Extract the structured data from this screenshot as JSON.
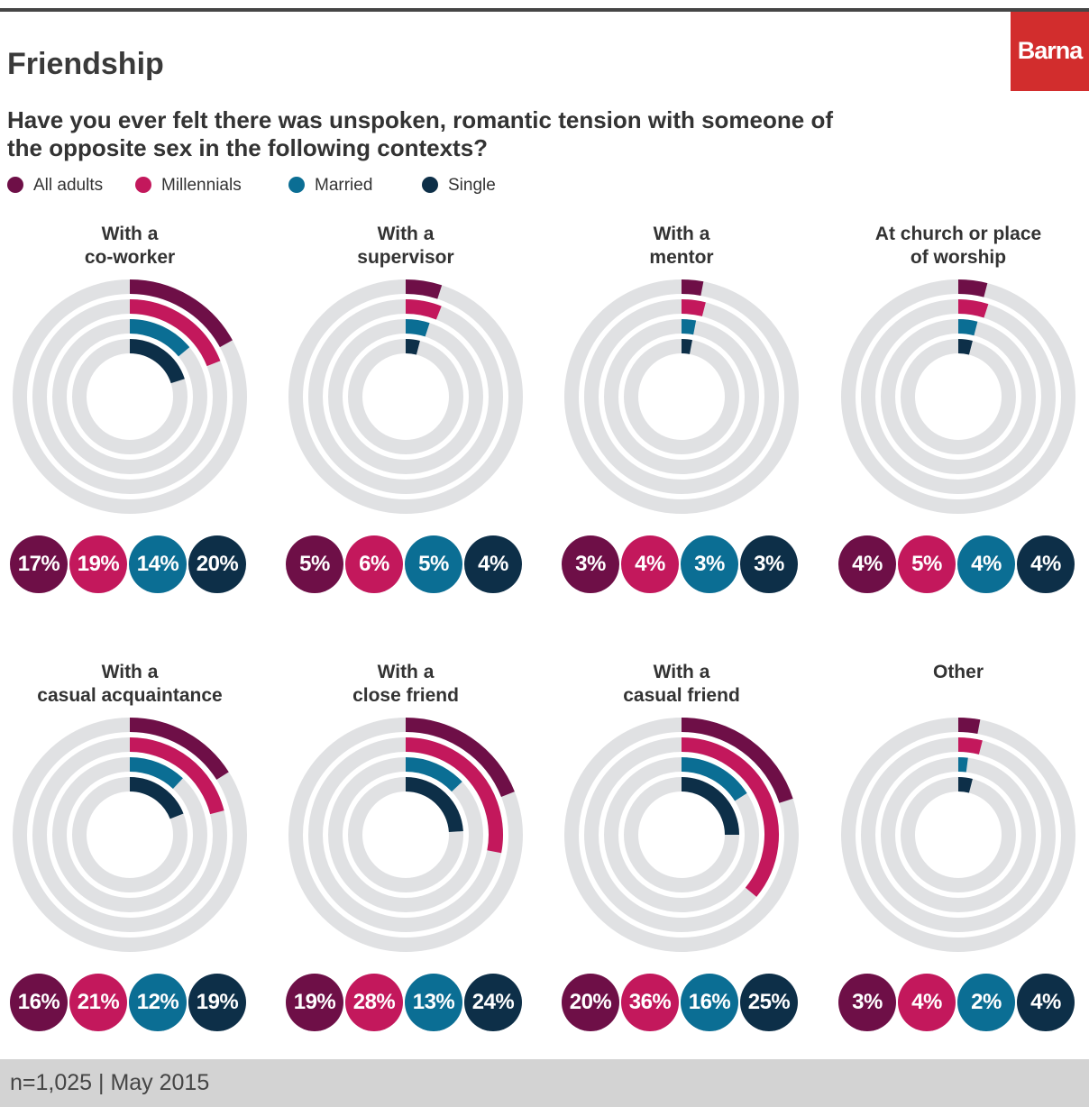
{
  "title": "Friendship",
  "brand": "Barna",
  "question": "Have you ever felt there was unspoken, romantic tension with someone of the opposite sex in the following contexts?",
  "footer": "n=1,025 | May 2015",
  "colors": {
    "All adults": "#6e0f47",
    "Millennials": "#c3185c",
    "Married": "#0b6e94",
    "Single": "#0d2f48",
    "track": "#e0e1e3"
  },
  "chart_data": {
    "type": "radial-bar",
    "title": "Friendship",
    "subtitle": "Have you ever felt there was unspoken, romantic tension with someone of the opposite sex in the following contexts?",
    "unit": "%",
    "series_names": [
      "All adults",
      "Millennials",
      "Married",
      "Single"
    ],
    "panels": [
      {
        "label": "With a\nco-worker",
        "values": [
          17,
          19,
          14,
          20
        ]
      },
      {
        "label": "With a\nsupervisor",
        "values": [
          5,
          6,
          5,
          4
        ]
      },
      {
        "label": "With a\nmentor",
        "values": [
          3,
          4,
          3,
          3
        ]
      },
      {
        "label": "At church or place\nof worship",
        "values": [
          4,
          5,
          4,
          4
        ]
      },
      {
        "label": "With a\ncasual acquaintance",
        "values": [
          16,
          21,
          12,
          19
        ]
      },
      {
        "label": "With a\nclose friend",
        "values": [
          19,
          28,
          13,
          24
        ]
      },
      {
        "label": "With a\ncasual friend",
        "values": [
          20,
          36,
          16,
          25
        ]
      },
      {
        "label": "Other",
        "values": [
          3,
          4,
          2,
          4
        ]
      }
    ]
  }
}
